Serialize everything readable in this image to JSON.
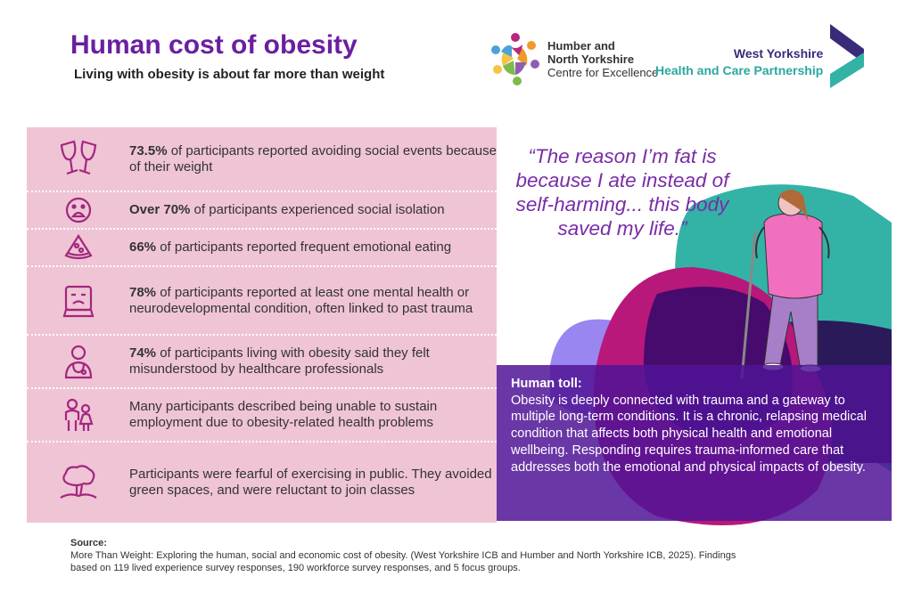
{
  "header": {
    "title": "Human cost of obesity",
    "subtitle": "Living with obesity is about far more than weight"
  },
  "logos": {
    "hny": {
      "line1": "Humber and",
      "line2": "North Yorkshire",
      "line3": "Centre for Excellence"
    },
    "wy": {
      "line1": "West Yorkshire",
      "line2": "Health and Care Partnership"
    }
  },
  "stats": [
    {
      "icon": "wine-glasses-icon",
      "bold": "73.5%",
      "text": " of participants reported avoiding social events because of their weight"
    },
    {
      "icon": "sad-face-icon",
      "bold": "Over 70%",
      "text": " of participants experienced social isolation"
    },
    {
      "icon": "pizza-slice-icon",
      "bold": "66%",
      "text": " of participants reported frequent emotional eating"
    },
    {
      "icon": "sad-person-screen-icon",
      "bold": "78%",
      "text": " of participants reported at least one mental health or neurodevelopmental condition, often linked to past trauma"
    },
    {
      "icon": "doctor-icon",
      "bold": "74%",
      "text": " of participants living with obesity said they felt misunderstood by healthcare professionals"
    },
    {
      "icon": "people-icon",
      "bold": "",
      "text": "Many participants described being unable to sustain employment due to obesity-related health problems"
    },
    {
      "icon": "tree-icon",
      "bold": "",
      "text": "Participants were fearful of exercising in public. They avoided green spaces, and were reluctant to join classes"
    }
  ],
  "quote": "“The reason I’m fat is because I ate instead of self-harming... this body saved my life.”",
  "toll": {
    "heading": "Human toll:",
    "body": "Obesity is deeply connected with trauma and a gateway to multiple long-term conditions. It is a chronic, relapsing medical condition that affects both physical health and emotional wellbeing. Responding requires trauma-informed care that addresses both the emotional and physical impacts of obesity."
  },
  "source": {
    "label": "Source:",
    "text": "More Than Weight: Exploring the human, social and economic cost of obesity. (West Yorkshire ICB and Humber and North Yorkshire ICB, 2025). Findings based on 119 lived experience survey responses, 190 workforce survey responses, and 5 focus groups."
  },
  "colors": {
    "title": "#6a1fa0",
    "panel": "#efc4d5",
    "icon": "#a3267e",
    "toll": "#50149a",
    "teal": "#33b3a6",
    "magenta": "#b8187a"
  }
}
